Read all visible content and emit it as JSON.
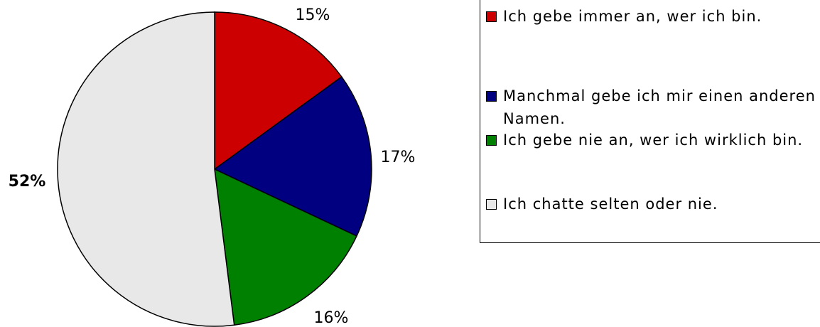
{
  "chart_data": {
    "type": "pie",
    "categories": [
      "Ich gebe immer an, wer ich bin.",
      "Manchmal gebe ich mir einen anderen Namen.",
      "Ich gebe nie an, wer ich wirklich bin.",
      "Ich chatte selten oder nie."
    ],
    "values": [
      15,
      17,
      16,
      52
    ],
    "value_labels": [
      "15%",
      "17%",
      "16%",
      "52%"
    ],
    "colors": [
      "#cc0000",
      "#000080",
      "#008000",
      "#e8e8e8"
    ]
  }
}
